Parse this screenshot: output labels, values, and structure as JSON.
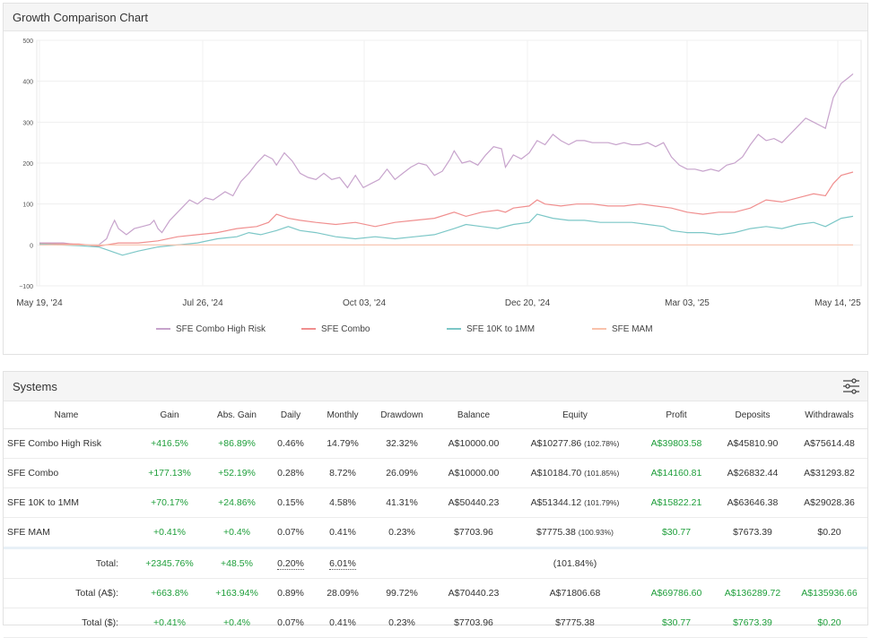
{
  "chart_panel": {
    "title": "Growth Comparison Chart"
  },
  "chart_data": {
    "type": "line",
    "y_ticks": [
      "500",
      "400",
      "300",
      "200",
      "100",
      "0",
      "−100"
    ],
    "y_range": [
      -100,
      500
    ],
    "x_ticks": [
      "May 19, '24",
      "Jul 26, '24",
      "Oct 03, '24",
      "Dec 20, '24",
      "Mar 03, '25",
      "May 14, '25"
    ],
    "grid": true,
    "legend_position": "bottom",
    "series": [
      {
        "name": "SFE Combo High Risk",
        "color": "#c7a3cc",
        "points": [
          [
            0,
            5
          ],
          [
            6,
            5
          ],
          [
            10,
            0
          ],
          [
            15,
            0
          ],
          [
            17,
            15
          ],
          [
            18,
            40
          ],
          [
            19,
            60
          ],
          [
            20,
            40
          ],
          [
            22,
            25
          ],
          [
            24,
            40
          ],
          [
            26,
            45
          ],
          [
            28,
            50
          ],
          [
            29,
            60
          ],
          [
            30,
            40
          ],
          [
            31,
            30
          ],
          [
            33,
            60
          ],
          [
            35,
            80
          ],
          [
            37,
            100
          ],
          [
            38,
            110
          ],
          [
            40,
            100
          ],
          [
            42,
            115
          ],
          [
            44,
            110
          ],
          [
            47,
            130
          ],
          [
            49,
            120
          ],
          [
            51,
            155
          ],
          [
            53,
            175
          ],
          [
            55,
            200
          ],
          [
            57,
            220
          ],
          [
            59,
            210
          ],
          [
            60,
            195
          ],
          [
            62,
            225
          ],
          [
            64,
            205
          ],
          [
            66,
            175
          ],
          [
            68,
            165
          ],
          [
            70,
            160
          ],
          [
            72,
            175
          ],
          [
            74,
            160
          ],
          [
            76,
            165
          ],
          [
            78,
            140
          ],
          [
            80,
            170
          ],
          [
            82,
            140
          ],
          [
            84,
            150
          ],
          [
            86,
            160
          ],
          [
            88,
            185
          ],
          [
            90,
            160
          ],
          [
            92,
            175
          ],
          [
            94,
            190
          ],
          [
            96,
            200
          ],
          [
            98,
            195
          ],
          [
            100,
            170
          ],
          [
            102,
            180
          ],
          [
            104,
            210
          ],
          [
            105,
            230
          ],
          [
            107,
            200
          ],
          [
            109,
            205
          ],
          [
            111,
            195
          ],
          [
            113,
            220
          ],
          [
            115,
            240
          ],
          [
            117,
            235
          ],
          [
            118,
            190
          ],
          [
            120,
            220
          ],
          [
            122,
            210
          ],
          [
            124,
            225
          ],
          [
            126,
            255
          ],
          [
            128,
            245
          ],
          [
            130,
            270
          ],
          [
            132,
            255
          ],
          [
            134,
            245
          ],
          [
            136,
            255
          ],
          [
            138,
            255
          ],
          [
            140,
            250
          ],
          [
            142,
            250
          ],
          [
            144,
            250
          ],
          [
            146,
            245
          ],
          [
            148,
            250
          ],
          [
            150,
            245
          ],
          [
            152,
            245
          ],
          [
            154,
            250
          ],
          [
            156,
            240
          ],
          [
            158,
            250
          ],
          [
            160,
            215
          ],
          [
            162,
            195
          ],
          [
            164,
            185
          ],
          [
            166,
            185
          ],
          [
            168,
            180
          ],
          [
            170,
            185
          ],
          [
            172,
            180
          ],
          [
            174,
            195
          ],
          [
            176,
            200
          ],
          [
            178,
            215
          ],
          [
            180,
            245
          ],
          [
            182,
            270
          ],
          [
            184,
            255
          ],
          [
            186,
            260
          ],
          [
            188,
            250
          ],
          [
            190,
            270
          ],
          [
            192,
            290
          ],
          [
            194,
            310
          ],
          [
            196,
            300
          ],
          [
            198,
            290
          ],
          [
            199,
            285
          ],
          [
            201,
            360
          ],
          [
            203,
            395
          ],
          [
            205,
            410
          ],
          [
            206,
            418
          ]
        ]
      },
      {
        "name": "SFE Combo",
        "color": "#f08f8f",
        "points": [
          [
            0,
            3
          ],
          [
            10,
            2
          ],
          [
            15,
            -3
          ],
          [
            20,
            5
          ],
          [
            25,
            5
          ],
          [
            30,
            10
          ],
          [
            35,
            20
          ],
          [
            40,
            25
          ],
          [
            45,
            30
          ],
          [
            50,
            40
          ],
          [
            55,
            45
          ],
          [
            58,
            55
          ],
          [
            60,
            75
          ],
          [
            63,
            65
          ],
          [
            66,
            60
          ],
          [
            70,
            55
          ],
          [
            75,
            50
          ],
          [
            80,
            55
          ],
          [
            85,
            45
          ],
          [
            90,
            55
          ],
          [
            95,
            60
          ],
          [
            100,
            65
          ],
          [
            105,
            80
          ],
          [
            108,
            70
          ],
          [
            112,
            80
          ],
          [
            116,
            85
          ],
          [
            118,
            80
          ],
          [
            120,
            90
          ],
          [
            124,
            95
          ],
          [
            126,
            110
          ],
          [
            128,
            100
          ],
          [
            132,
            95
          ],
          [
            136,
            100
          ],
          [
            140,
            100
          ],
          [
            144,
            95
          ],
          [
            148,
            95
          ],
          [
            152,
            100
          ],
          [
            156,
            95
          ],
          [
            160,
            90
          ],
          [
            164,
            80
          ],
          [
            168,
            75
          ],
          [
            172,
            80
          ],
          [
            176,
            80
          ],
          [
            180,
            90
          ],
          [
            184,
            110
          ],
          [
            188,
            105
          ],
          [
            192,
            115
          ],
          [
            196,
            125
          ],
          [
            199,
            120
          ],
          [
            201,
            150
          ],
          [
            203,
            170
          ],
          [
            206,
            178
          ]
        ]
      },
      {
        "name": "SFE 10K to 1MM",
        "color": "#7cc7c7",
        "points": [
          [
            0,
            2
          ],
          [
            10,
            -2
          ],
          [
            15,
            -5
          ],
          [
            18,
            -15
          ],
          [
            21,
            -25
          ],
          [
            25,
            -15
          ],
          [
            30,
            -5
          ],
          [
            35,
            0
          ],
          [
            40,
            5
          ],
          [
            45,
            15
          ],
          [
            50,
            20
          ],
          [
            53,
            30
          ],
          [
            56,
            25
          ],
          [
            60,
            35
          ],
          [
            63,
            45
          ],
          [
            66,
            35
          ],
          [
            70,
            30
          ],
          [
            75,
            20
          ],
          [
            80,
            15
          ],
          [
            85,
            20
          ],
          [
            90,
            15
          ],
          [
            95,
            20
          ],
          [
            100,
            25
          ],
          [
            105,
            40
          ],
          [
            108,
            50
          ],
          [
            112,
            45
          ],
          [
            116,
            40
          ],
          [
            120,
            50
          ],
          [
            124,
            55
          ],
          [
            126,
            75
          ],
          [
            130,
            65
          ],
          [
            134,
            60
          ],
          [
            138,
            60
          ],
          [
            142,
            55
          ],
          [
            146,
            55
          ],
          [
            150,
            55
          ],
          [
            154,
            50
          ],
          [
            158,
            45
          ],
          [
            160,
            35
          ],
          [
            164,
            30
          ],
          [
            168,
            30
          ],
          [
            172,
            25
          ],
          [
            176,
            30
          ],
          [
            180,
            40
          ],
          [
            184,
            45
          ],
          [
            188,
            40
          ],
          [
            192,
            50
          ],
          [
            196,
            55
          ],
          [
            199,
            45
          ],
          [
            201,
            55
          ],
          [
            203,
            65
          ],
          [
            206,
            70
          ]
        ]
      },
      {
        "name": "SFE MAM",
        "color": "#f9c2ab",
        "points": [
          [
            0,
            0
          ],
          [
            206,
            0
          ]
        ]
      }
    ]
  },
  "systems_panel": {
    "title": "Systems",
    "filter_icon": "sliders-icon",
    "columns": [
      "Name",
      "Gain",
      "Abs. Gain",
      "Daily",
      "Monthly",
      "Drawdown",
      "Balance",
      "Equity",
      "Profit",
      "Deposits",
      "Withdrawals"
    ],
    "rows": [
      {
        "name": "SFE Combo High Risk",
        "gain": "+416.5%",
        "abs_gain": "+86.89%",
        "daily": "0.46%",
        "monthly": "14.79%",
        "drawdown": "32.32%",
        "balance": "A$10000.00",
        "equity": "A$10277.86",
        "equity_pct": "(102.78%)",
        "profit": "A$39803.58",
        "deposits": "A$45810.90",
        "withdrawals": "A$75614.48"
      },
      {
        "name": "SFE Combo",
        "gain": "+177.13%",
        "abs_gain": "+52.19%",
        "daily": "0.28%",
        "monthly": "8.72%",
        "drawdown": "26.09%",
        "balance": "A$10000.00",
        "equity": "A$10184.70",
        "equity_pct": "(101.85%)",
        "profit": "A$14160.81",
        "deposits": "A$26832.44",
        "withdrawals": "A$31293.82"
      },
      {
        "name": "SFE 10K to 1MM",
        "gain": "+70.17%",
        "abs_gain": "+24.86%",
        "daily": "0.15%",
        "monthly": "4.58%",
        "drawdown": "41.31%",
        "balance": "A$50440.23",
        "equity": "A$51344.12",
        "equity_pct": "(101.79%)",
        "profit": "A$15822.21",
        "deposits": "A$63646.38",
        "withdrawals": "A$29028.36"
      },
      {
        "name": "SFE MAM",
        "gain": "+0.41%",
        "abs_gain": "+0.4%",
        "daily": "0.07%",
        "monthly": "0.41%",
        "drawdown": "0.23%",
        "balance": "$7703.96",
        "equity": "$7775.38",
        "equity_pct": "(100.93%)",
        "profit": "$30.77",
        "deposits": "$7673.39",
        "withdrawals": "$0.20"
      }
    ],
    "totals": [
      {
        "label": "Total:",
        "gain": "+2345.76%",
        "abs_gain": "+48.5%",
        "daily": "0.20%",
        "monthly": "6.01%",
        "drawdown": "",
        "balance": "",
        "equity": "(101.84%)",
        "profit": "",
        "deposits": "",
        "withdrawals": ""
      },
      {
        "label": "Total (A$):",
        "gain": "+663.8%",
        "abs_gain": "+163.94%",
        "daily": "0.89%",
        "monthly": "28.09%",
        "drawdown": "99.72%",
        "balance": "A$70440.23",
        "equity": "A$71806.68",
        "profit": "A$69786.60",
        "deposits": "A$136289.72",
        "withdrawals": "A$135936.66"
      },
      {
        "label": "Total ($):",
        "gain": "+0.41%",
        "abs_gain": "+0.4%",
        "daily": "0.07%",
        "monthly": "0.41%",
        "drawdown": "0.23%",
        "balance": "$7703.96",
        "equity": "$7775.38",
        "profit": "$30.77",
        "deposits": "$7673.39",
        "withdrawals": "$0.20"
      }
    ]
  }
}
